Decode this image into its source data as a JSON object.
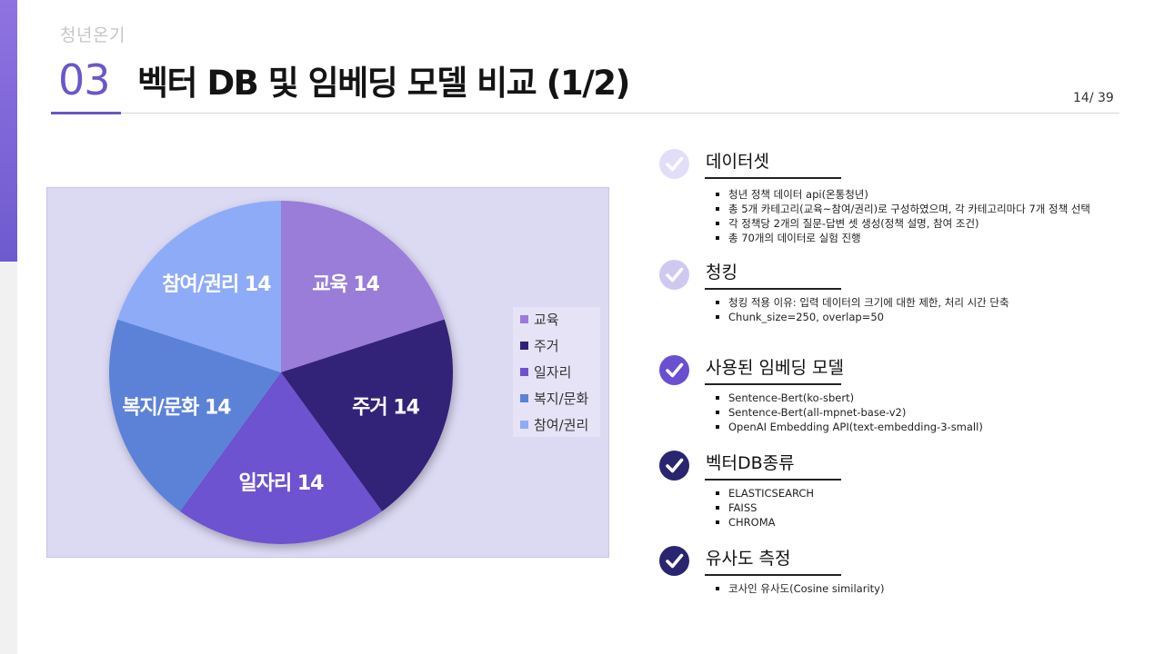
{
  "brand": "청년온기",
  "section_number": "03",
  "title": "벡터 DB 및 임베딩 모델 비교 (1/2)",
  "page_indicator": "14/ 39",
  "colors": {
    "accent": "#6a58c8",
    "chart_background": "#dcd9f3",
    "check_light": "#e2defa",
    "check_mid": "#cfc9f2",
    "check_strong": "#6a4fd0",
    "check_dark": "#2a2570"
  },
  "chart_data": {
    "type": "pie",
    "title": "",
    "categories": [
      "교육",
      "주거",
      "일자리",
      "복지/문화",
      "참여/권리"
    ],
    "values": [
      14,
      14,
      14,
      14,
      14
    ],
    "colors": [
      "#9a7bd9",
      "#322078",
      "#6d52d0",
      "#5b82d8",
      "#8eabf8"
    ],
    "data_labels": [
      "교육 14",
      "주거 14",
      "일자리 14",
      "복지/문화 14",
      "참여/권리 14"
    ],
    "legend": {
      "placement": "right",
      "entries": [
        "교육",
        "주거",
        "일자리",
        "복지/문화",
        "참여/권리"
      ]
    }
  },
  "sections": [
    {
      "icon": "check-circle-icon",
      "check_style": "light",
      "title": "데이터셋",
      "bullets": [
        "청년 정책 데이터 api(온통청년)",
        "총 5개 카테고리(교육~참여/권리)로 구성하였으며, 각 카테고리마다 7개 정책 선택",
        "각 정책당 2개의 질문-답변 셋 생성(정책 설명, 참여 조건)",
        "총 70개의 데이터로 실험 진행"
      ]
    },
    {
      "icon": "check-circle-icon",
      "check_style": "mid",
      "title": "청킹",
      "bullets": [
        "청킹 적용 이유: 입력 데이터의 크기에 대한 제한, 처리 시간 단축",
        "Chunk_size=250, overlap=50"
      ]
    },
    {
      "icon": "check-circle-icon",
      "check_style": "strong",
      "title": "사용된 임베딩 모델",
      "bullets": [
        "Sentence-Bert(ko-sbert)",
        "Sentence-Bert(all-mpnet-base-v2)",
        "OpenAI Embedding API(text-embedding-3-small)"
      ]
    },
    {
      "icon": "check-circle-icon",
      "check_style": "dark",
      "title": "벡터DB종류",
      "bullets": [
        "ELASTICSEARCH",
        "FAISS",
        "CHROMA"
      ]
    },
    {
      "icon": "check-circle-icon",
      "check_style": "dark",
      "title": "유사도 측정",
      "bullets": [
        "코사인 유사도(Cosine similarity)"
      ]
    }
  ]
}
